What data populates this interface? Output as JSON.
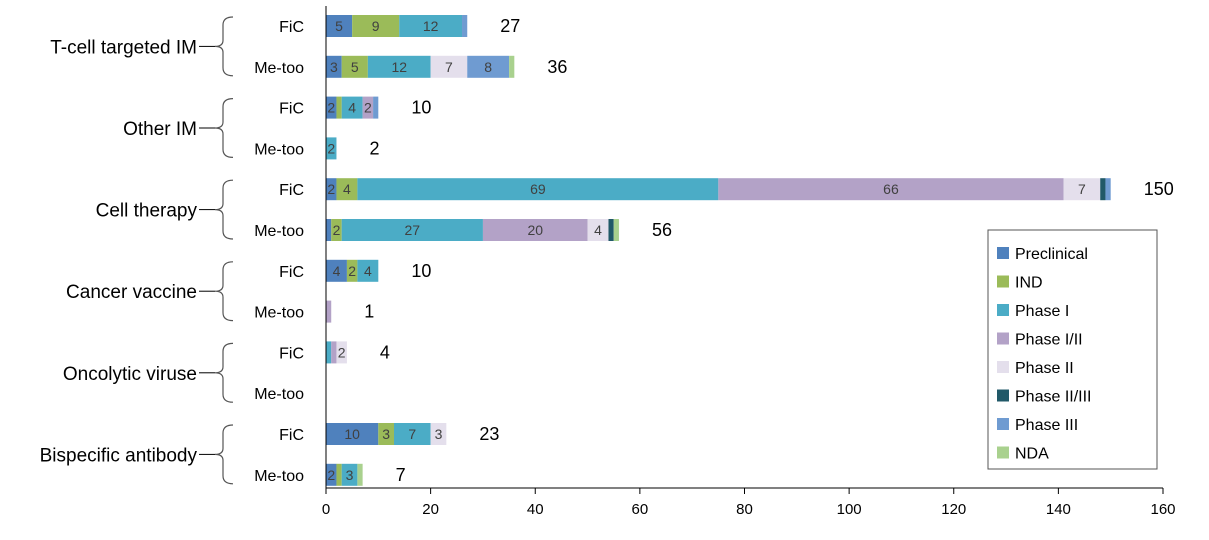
{
  "chart_data": {
    "type": "bar",
    "orientation": "horizontal",
    "stacked": true,
    "title": "",
    "xlabel": "",
    "ylabel": "",
    "xlim": [
      0,
      160
    ],
    "xticks": [
      0,
      20,
      40,
      60,
      80,
      100,
      120,
      140,
      160
    ],
    "legend_position": "right",
    "stages": [
      {
        "name": "Preclinical",
        "color": "#4f81bd"
      },
      {
        "name": "IND",
        "color": "#9bbb59"
      },
      {
        "name": "Phase I",
        "color": "#4bacc6"
      },
      {
        "name": "Phase I/II",
        "color": "#b3a2c7"
      },
      {
        "name": "Phase II",
        "color": "#e4dfec"
      },
      {
        "name": "Phase II/III",
        "color": "#215968"
      },
      {
        "name": "Phase III",
        "color": "#6f9bd1"
      },
      {
        "name": "NDA",
        "color": "#a9d18e"
      }
    ],
    "groups": [
      {
        "name": "T-cell targeted IM",
        "bars": [
          {
            "name": "FiC",
            "total": "27",
            "values": [
              5,
              9,
              12,
              0,
              0,
              0,
              1,
              0
            ],
            "labels": [
              "5",
              "9",
              "12",
              "",
              "",
              "",
              "",
              ""
            ]
          },
          {
            "name": "Me-too",
            "total": "36",
            "values": [
              3,
              5,
              12,
              0,
              7,
              0,
              8,
              1
            ],
            "labels": [
              "3",
              "5",
              "12",
              "",
              "7",
              "",
              "8",
              ""
            ]
          }
        ]
      },
      {
        "name": "Other IM",
        "bars": [
          {
            "name": "FiC",
            "total": "10",
            "values": [
              2,
              1,
              4,
              2,
              0,
              0,
              1,
              0
            ],
            "labels": [
              "2",
              "",
              "4",
              "2",
              "",
              "",
              "",
              ""
            ]
          },
          {
            "name": "Me-too",
            "total": "2",
            "values": [
              0,
              0,
              2,
              0,
              0,
              0,
              0,
              0
            ],
            "labels": [
              "",
              "",
              "2",
              "",
              "",
              "",
              "",
              ""
            ]
          }
        ]
      },
      {
        "name": "Cell therapy",
        "bars": [
          {
            "name": "FiC",
            "total": "150",
            "values": [
              2,
              4,
              69,
              66,
              7,
              1,
              1,
              0
            ],
            "labels": [
              "2",
              "4",
              "69",
              "66",
              "7",
              "",
              "",
              ""
            ]
          },
          {
            "name": "Me-too",
            "total": "56",
            "values": [
              1,
              2,
              27,
              20,
              4,
              1,
              0,
              1
            ],
            "labels": [
              "",
              "2",
              "27",
              "20",
              "4",
              "",
              "",
              ""
            ]
          }
        ]
      },
      {
        "name": "Cancer vaccine",
        "bars": [
          {
            "name": "FiC",
            "total": "10",
            "values": [
              4,
              2,
              4,
              0,
              0,
              0,
              0,
              0
            ],
            "labels": [
              "4",
              "2",
              "4",
              "",
              "",
              "",
              "",
              ""
            ]
          },
          {
            "name": "Me-too",
            "total": "1",
            "values": [
              0,
              0,
              0,
              1,
              0,
              0,
              0,
              0
            ],
            "labels": [
              "",
              "",
              "",
              "",
              "",
              "",
              "",
              ""
            ]
          }
        ]
      },
      {
        "name": "Oncolytic viruse",
        "bars": [
          {
            "name": "FiC",
            "total": "4",
            "values": [
              0,
              0,
              1,
              1,
              2,
              0,
              0,
              0
            ],
            "labels": [
              "",
              "",
              "",
              "",
              "2",
              "",
              "",
              ""
            ]
          },
          {
            "name": "Me-too",
            "total": "",
            "values": [
              0,
              0,
              0,
              0,
              0,
              0,
              0,
              0
            ],
            "labels": [
              "",
              "",
              "",
              "",
              "",
              "",
              "",
              ""
            ]
          }
        ]
      },
      {
        "name": "Bispecific antibody",
        "bars": [
          {
            "name": "FiC",
            "total": "23",
            "values": [
              10,
              3,
              7,
              0,
              3,
              0,
              0,
              0
            ],
            "labels": [
              "10",
              "3",
              "7",
              "",
              "3",
              "",
              "",
              ""
            ]
          },
          {
            "name": "Me-too",
            "total": "7",
            "values": [
              2,
              1,
              3,
              0,
              0,
              0,
              0,
              1
            ],
            "labels": [
              "2",
              "",
              "3",
              "",
              "",
              "",
              "",
              ""
            ]
          }
        ]
      }
    ]
  }
}
